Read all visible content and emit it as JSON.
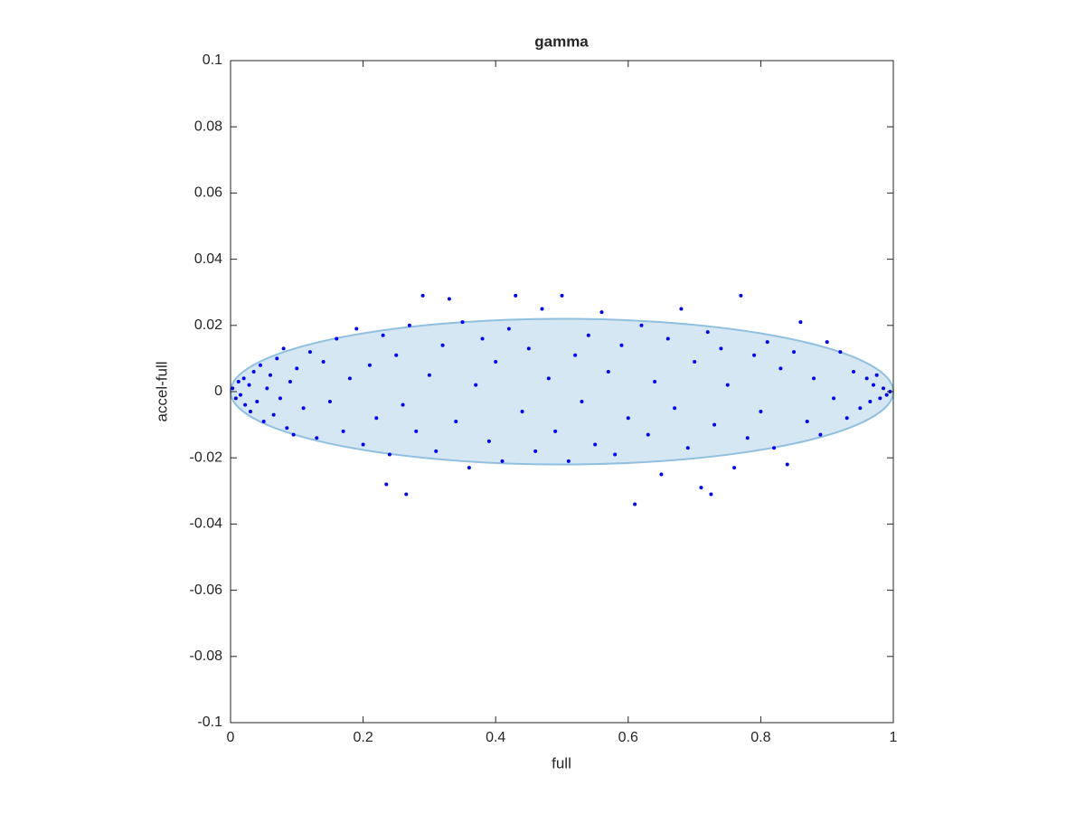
{
  "chart_data": {
    "type": "scatter",
    "title": "gamma",
    "x_label": "full",
    "y_label": "accel-full",
    "xlim": [
      0,
      1
    ],
    "ylim": [
      -0.1,
      0.1
    ],
    "xticks": [
      0,
      0.2,
      0.4,
      0.6,
      0.8,
      1
    ],
    "yticks": [
      -0.1,
      -0.08,
      -0.06,
      -0.04,
      -0.02,
      0,
      0.02,
      0.04,
      0.06,
      0.08,
      0.1
    ],
    "ellipse": {
      "center": [
        0.5,
        0
      ],
      "radii": [
        0.5,
        0.022
      ],
      "color": "#d5e7f3",
      "edge_color": "#8fc0df"
    },
    "series": [
      {
        "color": "#0000ff",
        "x": [
          0.003,
          0.008,
          0.012,
          0.015,
          0.02,
          0.022,
          0.028,
          0.03,
          0.035,
          0.04,
          0.045,
          0.05,
          0.055,
          0.06,
          0.065,
          0.07,
          0.075,
          0.08,
          0.085,
          0.09,
          0.095,
          0.1,
          0.11,
          0.12,
          0.13,
          0.14,
          0.15,
          0.16,
          0.17,
          0.18,
          0.19,
          0.2,
          0.21,
          0.22,
          0.23,
          0.235,
          0.24,
          0.25,
          0.26,
          0.265,
          0.27,
          0.28,
          0.29,
          0.3,
          0.31,
          0.32,
          0.33,
          0.34,
          0.35,
          0.36,
          0.37,
          0.38,
          0.39,
          0.4,
          0.41,
          0.42,
          0.43,
          0.44,
          0.45,
          0.46,
          0.47,
          0.48,
          0.49,
          0.5,
          0.51,
          0.52,
          0.53,
          0.54,
          0.55,
          0.56,
          0.57,
          0.58,
          0.59,
          0.6,
          0.61,
          0.62,
          0.63,
          0.64,
          0.65,
          0.66,
          0.67,
          0.68,
          0.69,
          0.7,
          0.71,
          0.72,
          0.725,
          0.73,
          0.74,
          0.75,
          0.76,
          0.77,
          0.78,
          0.79,
          0.8,
          0.81,
          0.82,
          0.83,
          0.84,
          0.85,
          0.86,
          0.87,
          0.88,
          0.89,
          0.9,
          0.91,
          0.92,
          0.93,
          0.94,
          0.95,
          0.96,
          0.965,
          0.97,
          0.975,
          0.98,
          0.985,
          0.99,
          0.995
        ],
        "values": [
          0.001,
          -0.002,
          0.003,
          -0.001,
          0.004,
          -0.004,
          0.002,
          -0.006,
          0.006,
          -0.003,
          0.008,
          -0.009,
          0.001,
          0.005,
          -0.007,
          0.01,
          -0.002,
          0.013,
          -0.011,
          0.003,
          -0.013,
          0.007,
          -0.005,
          0.012,
          -0.014,
          0.009,
          -0.003,
          0.016,
          -0.012,
          0.004,
          0.019,
          -0.016,
          0.008,
          -0.008,
          0.017,
          -0.028,
          -0.019,
          0.011,
          -0.004,
          -0.031,
          0.02,
          -0.012,
          0.029,
          0.005,
          -0.018,
          0.014,
          0.028,
          -0.009,
          0.021,
          -0.023,
          0.002,
          0.016,
          -0.015,
          0.009,
          -0.021,
          0.019,
          0.029,
          -0.006,
          0.013,
          -0.018,
          0.025,
          0.004,
          -0.012,
          0.029,
          -0.021,
          0.011,
          -0.003,
          0.017,
          -0.016,
          0.024,
          0.006,
          -0.019,
          0.014,
          -0.008,
          -0.034,
          0.02,
          -0.013,
          0.003,
          -0.025,
          0.016,
          -0.005,
          0.025,
          -0.017,
          0.009,
          -0.029,
          0.018,
          -0.031,
          -0.01,
          0.013,
          0.002,
          -0.023,
          0.029,
          -0.014,
          0.011,
          -0.006,
          0.015,
          -0.017,
          0.007,
          -0.022,
          0.012,
          0.021,
          -0.009,
          0.004,
          -0.013,
          0.015,
          -0.002,
          0.012,
          -0.008,
          0.006,
          -0.005,
          0.004,
          -0.003,
          0.002,
          0.005,
          -0.002,
          0.001,
          -0.001,
          0
        ]
      }
    ]
  }
}
